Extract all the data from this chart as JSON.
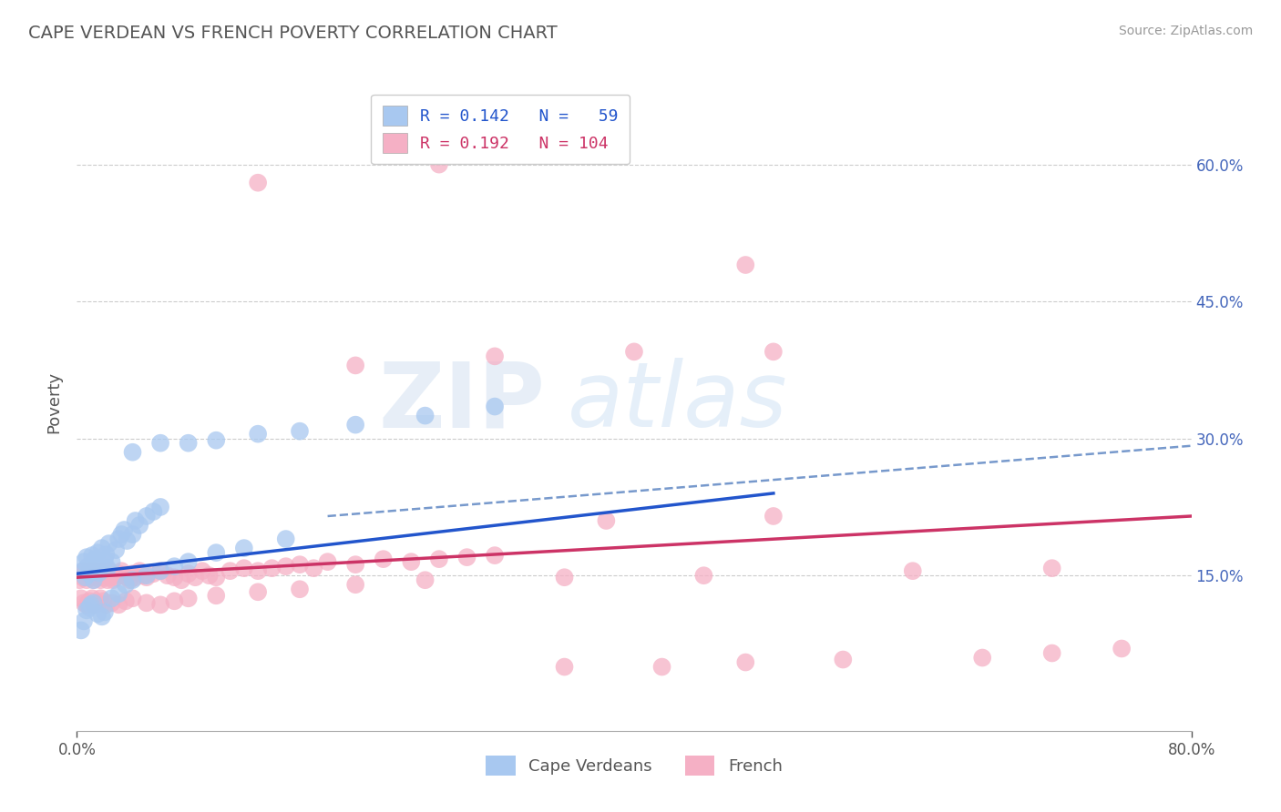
{
  "title": "CAPE VERDEAN VS FRENCH POVERTY CORRELATION CHART",
  "source": "Source: ZipAtlas.com",
  "ylabel": "Poverty",
  "xmin": 0.0,
  "xmax": 0.8,
  "ymin": -0.02,
  "ymax": 0.7,
  "yticks": [
    0.15,
    0.3,
    0.45,
    0.6
  ],
  "ytick_labels": [
    "15.0%",
    "30.0%",
    "45.0%",
    "60.0%"
  ],
  "legend_line1": "R = 0.142   N =   59",
  "legend_line2": "R = 0.192   N = 104",
  "blue_color": "#a8c8f0",
  "pink_color": "#f5b0c5",
  "blue_line_color": "#2255cc",
  "pink_line_color": "#cc3366",
  "dashed_line_color": "#7799cc",
  "watermark_part1": "ZIP",
  "watermark_part2": "atlas",
  "background_color": "#ffffff",
  "grid_color": "#cccccc",
  "blue_x": [
    0.004,
    0.005,
    0.006,
    0.007,
    0.008,
    0.009,
    0.01,
    0.011,
    0.012,
    0.013,
    0.014,
    0.015,
    0.016,
    0.018,
    0.02,
    0.021,
    0.022,
    0.023,
    0.025,
    0.028,
    0.03,
    0.032,
    0.034,
    0.036,
    0.04,
    0.042,
    0.045,
    0.05,
    0.055,
    0.06,
    0.003,
    0.005,
    0.007,
    0.009,
    0.01,
    0.012,
    0.015,
    0.018,
    0.02,
    0.025,
    0.03,
    0.035,
    0.04,
    0.05,
    0.06,
    0.07,
    0.08,
    0.1,
    0.12,
    0.15,
    0.04,
    0.06,
    0.08,
    0.1,
    0.13,
    0.16,
    0.2,
    0.25,
    0.3
  ],
  "blue_y": [
    0.155,
    0.165,
    0.148,
    0.17,
    0.16,
    0.152,
    0.158,
    0.172,
    0.145,
    0.168,
    0.162,
    0.175,
    0.153,
    0.18,
    0.167,
    0.173,
    0.158,
    0.185,
    0.165,
    0.178,
    0.19,
    0.195,
    0.2,
    0.188,
    0.195,
    0.21,
    0.205,
    0.215,
    0.22,
    0.225,
    0.09,
    0.1,
    0.112,
    0.115,
    0.118,
    0.12,
    0.108,
    0.105,
    0.11,
    0.125,
    0.13,
    0.14,
    0.145,
    0.15,
    0.155,
    0.16,
    0.165,
    0.175,
    0.18,
    0.19,
    0.285,
    0.295,
    0.295,
    0.298,
    0.305,
    0.308,
    0.315,
    0.325,
    0.335
  ],
  "pink_x": [
    0.002,
    0.003,
    0.004,
    0.005,
    0.006,
    0.007,
    0.008,
    0.009,
    0.01,
    0.011,
    0.012,
    0.013,
    0.014,
    0.015,
    0.016,
    0.017,
    0.018,
    0.019,
    0.02,
    0.021,
    0.022,
    0.023,
    0.024,
    0.025,
    0.026,
    0.028,
    0.03,
    0.032,
    0.034,
    0.036,
    0.038,
    0.04,
    0.042,
    0.045,
    0.048,
    0.05,
    0.055,
    0.06,
    0.065,
    0.07,
    0.075,
    0.08,
    0.085,
    0.09,
    0.095,
    0.1,
    0.11,
    0.12,
    0.13,
    0.14,
    0.15,
    0.16,
    0.17,
    0.18,
    0.2,
    0.22,
    0.24,
    0.26,
    0.28,
    0.3,
    0.003,
    0.005,
    0.007,
    0.009,
    0.011,
    0.013,
    0.015,
    0.017,
    0.019,
    0.021,
    0.025,
    0.03,
    0.035,
    0.04,
    0.05,
    0.06,
    0.07,
    0.08,
    0.1,
    0.13,
    0.16,
    0.2,
    0.25,
    0.35,
    0.45,
    0.6,
    0.7,
    0.38,
    0.5,
    0.35,
    0.42,
    0.48,
    0.55,
    0.65,
    0.7,
    0.75,
    0.2,
    0.3,
    0.4,
    0.5,
    0.13,
    0.26,
    0.38,
    0.48
  ],
  "pink_y": [
    0.145,
    0.152,
    0.148,
    0.155,
    0.15,
    0.145,
    0.152,
    0.148,
    0.155,
    0.15,
    0.145,
    0.155,
    0.15,
    0.148,
    0.152,
    0.145,
    0.155,
    0.148,
    0.152,
    0.15,
    0.145,
    0.155,
    0.148,
    0.15,
    0.145,
    0.148,
    0.152,
    0.155,
    0.15,
    0.148,
    0.145,
    0.152,
    0.148,
    0.155,
    0.15,
    0.148,
    0.152,
    0.155,
    0.15,
    0.148,
    0.145,
    0.152,
    0.148,
    0.155,
    0.15,
    0.148,
    0.155,
    0.158,
    0.155,
    0.158,
    0.16,
    0.162,
    0.158,
    0.165,
    0.162,
    0.168,
    0.165,
    0.168,
    0.17,
    0.172,
    0.125,
    0.12,
    0.118,
    0.122,
    0.125,
    0.118,
    0.12,
    0.125,
    0.122,
    0.118,
    0.12,
    0.118,
    0.122,
    0.125,
    0.12,
    0.118,
    0.122,
    0.125,
    0.128,
    0.132,
    0.135,
    0.14,
    0.145,
    0.148,
    0.15,
    0.155,
    0.158,
    0.21,
    0.215,
    0.05,
    0.05,
    0.055,
    0.058,
    0.06,
    0.065,
    0.07,
    0.38,
    0.39,
    0.395,
    0.395,
    0.58,
    0.6,
    0.61,
    0.49
  ],
  "blue_line_x": [
    0.0,
    0.5
  ],
  "blue_line_y": [
    0.152,
    0.24
  ],
  "pink_line_x": [
    0.0,
    0.8
  ],
  "pink_line_y": [
    0.148,
    0.215
  ],
  "dashed_line_x": [
    0.18,
    0.8
  ],
  "dashed_line_y": [
    0.215,
    0.292
  ]
}
